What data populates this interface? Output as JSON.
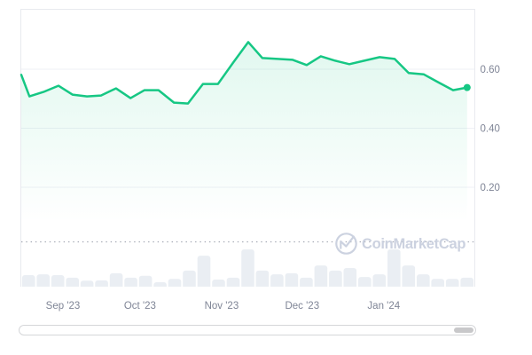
{
  "watermark": {
    "text": "CoinMarketCap"
  },
  "colors": {
    "line": "#16c784",
    "area_top": "rgba(22,199,132,0.13)",
    "area_bottom": "rgba(22,199,132,0)",
    "grid": "#eff1f5",
    "border": "#e8eaef",
    "axis_text": "#7f8596",
    "volume_bar": "#eaeef3",
    "dotted_line": "#a4a9b4",
    "watermark": "#ccd2e0",
    "scrollbar_thumb": "#c8c8ca",
    "scrollbar_border": "#d5d6d9"
  },
  "chart_data": {
    "type": "line",
    "title": "",
    "xlabel": "",
    "ylabel": "",
    "ylim": [
      0,
      0.8
    ],
    "grid": true,
    "legend": false,
    "y_ticks": [
      {
        "value": 0.6,
        "label": "0.60"
      },
      {
        "value": 0.4,
        "label": "0.40"
      },
      {
        "value": 0.2,
        "label": "0.20"
      }
    ],
    "x_ticks": [
      {
        "pos": 0.092,
        "label": "Sep '23"
      },
      {
        "pos": 0.262,
        "label": "Oct '23"
      },
      {
        "pos": 0.442,
        "label": "Nov '23"
      },
      {
        "pos": 0.62,
        "label": "Dec '23"
      },
      {
        "pos": 0.8,
        "label": "Jan '24"
      }
    ],
    "price_points": [
      [
        0.0,
        0.581
      ],
      [
        0.018,
        0.508
      ],
      [
        0.049,
        0.523
      ],
      [
        0.082,
        0.544
      ],
      [
        0.113,
        0.514
      ],
      [
        0.145,
        0.508
      ],
      [
        0.176,
        0.511
      ],
      [
        0.209,
        0.535
      ],
      [
        0.241,
        0.502
      ],
      [
        0.272,
        0.529
      ],
      [
        0.303,
        0.529
      ],
      [
        0.337,
        0.487
      ],
      [
        0.368,
        0.484
      ],
      [
        0.401,
        0.55
      ],
      [
        0.434,
        0.55
      ],
      [
        0.468,
        0.623
      ],
      [
        0.501,
        0.692
      ],
      [
        0.532,
        0.638
      ],
      [
        0.566,
        0.635
      ],
      [
        0.599,
        0.632
      ],
      [
        0.63,
        0.614
      ],
      [
        0.661,
        0.644
      ],
      [
        0.693,
        0.629
      ],
      [
        0.724,
        0.617
      ],
      [
        0.757,
        0.629
      ],
      [
        0.791,
        0.641
      ],
      [
        0.824,
        0.635
      ],
      [
        0.855,
        0.587
      ],
      [
        0.888,
        0.583
      ],
      [
        0.92,
        0.556
      ],
      [
        0.953,
        0.529
      ],
      [
        0.984,
        0.538
      ]
    ],
    "last_price": 0.538,
    "volume_relative": [
      0.31,
      0.33,
      0.31,
      0.24,
      0.16,
      0.17,
      0.36,
      0.24,
      0.29,
      0.12,
      0.21,
      0.43,
      0.83,
      0.19,
      0.24,
      1.0,
      0.43,
      0.33,
      0.36,
      0.24,
      0.57,
      0.43,
      0.5,
      0.26,
      0.33,
      1.0,
      0.57,
      0.33,
      0.21,
      0.21,
      0.24
    ]
  }
}
